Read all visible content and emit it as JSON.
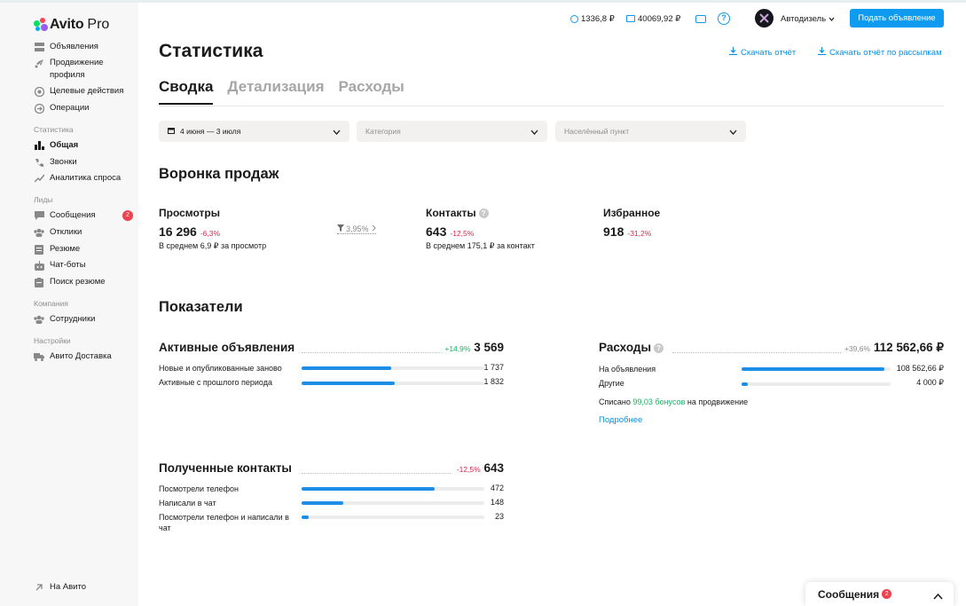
{
  "brand": {
    "name": "Avito",
    "suffix": "Pro"
  },
  "sidebar": {
    "top_items": [
      {
        "label": "Объявления",
        "icon": "list-icon"
      },
      {
        "label": "Продвижение профиля",
        "icon": "rocket-icon"
      },
      {
        "label": "Целевые действия",
        "icon": "target-icon"
      },
      {
        "label": "Операции",
        "icon": "operations-icon"
      }
    ],
    "section_stats": "Статистика",
    "stats_items": [
      {
        "label": "Общая",
        "icon": "bar-chart-icon"
      },
      {
        "label": "Звонки",
        "icon": "phone-icon"
      },
      {
        "label": "Аналитика спроса",
        "icon": "trend-icon"
      }
    ],
    "section_leads": "Лиды",
    "leads_items": [
      {
        "label": "Сообщения",
        "icon": "chat-icon",
        "badge": "2"
      },
      {
        "label": "Отклики",
        "icon": "people-icon"
      },
      {
        "label": "Резюме",
        "icon": "resume-icon"
      },
      {
        "label": "Чат-боты",
        "icon": "bot-icon"
      },
      {
        "label": "Поиск резюме",
        "icon": "search-resume-icon"
      }
    ],
    "section_company": "Компания",
    "company_items": [
      {
        "label": "Сотрудники",
        "icon": "people-icon"
      }
    ],
    "section_settings": "Настройки",
    "settings_items": [
      {
        "label": "Авито Доставка",
        "icon": "truck-icon"
      }
    ],
    "footer_item": {
      "label": "На Авито",
      "icon": "arrow-up-icon"
    }
  },
  "header": {
    "balance1": "1336,8 ₽",
    "balance2": "40069,92 ₽",
    "account_name": "Автодизель",
    "post_button": "Подать объявление"
  },
  "page": {
    "title": "Статистика",
    "download_report": "Скачать отчёт",
    "download_mailing_report": "Скачать отчёт по рассылкам",
    "tabs": [
      "Сводка",
      "Детализация",
      "Расходы"
    ],
    "filters": {
      "date": "4 июня — 3 июля",
      "category_placeholder": "Категория",
      "city_placeholder": "Населённый пункт"
    }
  },
  "funnel": {
    "title": "Воронка продаж",
    "views": {
      "label": "Просмотры",
      "value": "16 296",
      "delta": "-6,3%",
      "sub": "В среднем 6,9 ₽ за просмотр"
    },
    "conversion": "3,95%",
    "contacts": {
      "label": "Контакты",
      "value": "643",
      "delta": "-12,5%",
      "sub": "В среднем 175,1 ₽ за контакт"
    },
    "favorites": {
      "label": "Избранное",
      "value": "918",
      "delta": "-31,2%"
    }
  },
  "indicators": {
    "title": "Показатели",
    "active_ads": {
      "title": "Активные объявления",
      "delta": "+14,9%",
      "total": "3 569",
      "rows": [
        {
          "label": "Новые и опубликованные заново",
          "value": "1 737",
          "fraction": 0.49
        },
        {
          "label": "Активные с прошлого периода",
          "value": "1 832",
          "fraction": 0.51
        }
      ]
    },
    "expenses": {
      "title": "Расходы",
      "delta": "+39,6%",
      "total": "112 562,66 ₽",
      "rows": [
        {
          "label": "На объявления",
          "value": "108 562,66 ₽",
          "fraction": 0.96
        },
        {
          "label": "Другие",
          "value": "4 000 ₽",
          "fraction": 0.04
        }
      ],
      "bonus_prefix": "Списано",
      "bonus_amount": "99,03 бонусов",
      "bonus_suffix": "на продвижение",
      "more_link": "Подробнее"
    },
    "contacts_received": {
      "title": "Полученные контакты",
      "delta": "-12,5%",
      "total": "643",
      "rows": [
        {
          "label": "Посмотрели телефон",
          "value": "472",
          "fraction": 0.73
        },
        {
          "label": "Написали в чат",
          "value": "148",
          "fraction": 0.23
        },
        {
          "label": "Посмотрели телефон и написали в чат",
          "value": "23",
          "fraction": 0.04
        }
      ]
    }
  },
  "messages_panel": {
    "label": "Сообщения",
    "badge": "2"
  },
  "colors": {
    "accent": "#0f9cf0",
    "bar": "#1d8de6",
    "negative": "#e0244a",
    "positive": "#17b360"
  }
}
